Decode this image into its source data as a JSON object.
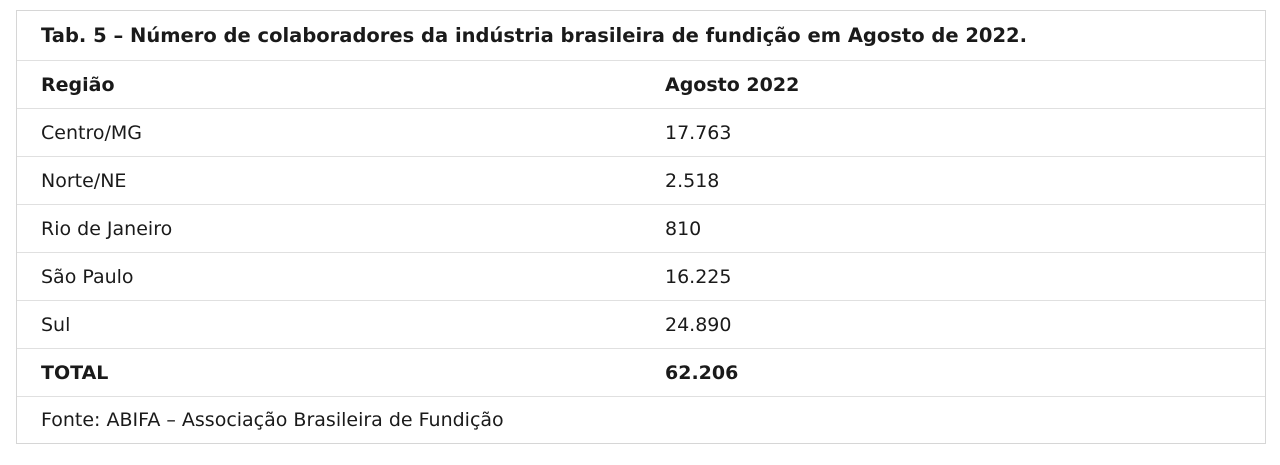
{
  "table": {
    "caption": "Tab. 5 – Número de colaboradores da indústria brasileira de fundição em Agosto de 2022.",
    "header": {
      "region": "Região",
      "period": "Agosto 2022"
    },
    "rows": [
      {
        "region": "Centro/MG",
        "value": "17.763"
      },
      {
        "region": "Norte/NE",
        "value": "2.518"
      },
      {
        "region": "Rio de Janeiro",
        "value": "810"
      },
      {
        "region": "São Paulo",
        "value": "16.225"
      },
      {
        "region": "Sul",
        "value": "24.890"
      }
    ],
    "total": {
      "label": "TOTAL",
      "value": "62.206"
    },
    "source": "Fonte: ABIFA – Associação Brasileira de Fundição"
  }
}
